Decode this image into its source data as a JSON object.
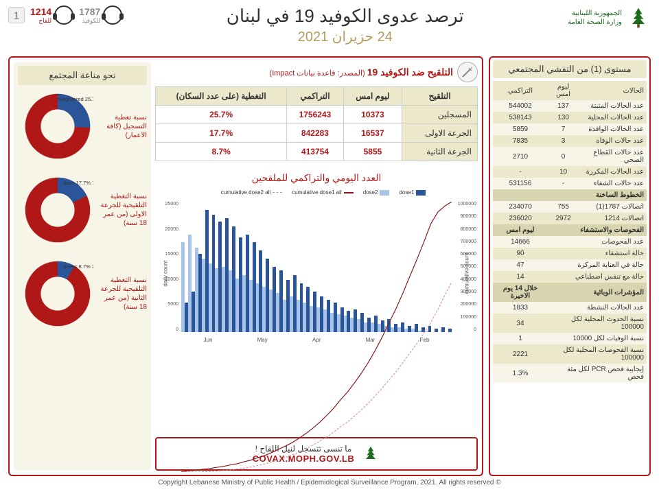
{
  "page_number": "1",
  "header": {
    "logo_line1": "الجمهورية اللبنانية",
    "logo_line2": "وزارة الصحة العامة",
    "title": "ترصد عدوى الكوفيد 19 في لبنان",
    "date": "24 حزيران 2021",
    "hotline_covid_num": "1787",
    "hotline_covid_lbl": "للكوفيد",
    "hotline_vac_num": "1214",
    "hotline_vac_lbl": "للقاح"
  },
  "right": {
    "title": "مستوى (1) من التفشي المجتمعي",
    "cols": {
      "c1": "الحالات",
      "c2": "ليوم امس",
      "c3": "التراكمي"
    },
    "rows": [
      {
        "l": "عدد الحالات المثبتة",
        "y": "137",
        "c": "544002"
      },
      {
        "l": "عدد الحالات المحلية",
        "y": "130",
        "c": "538143"
      },
      {
        "l": "عدد الحالات الوافدة",
        "y": "7",
        "c": "5859"
      },
      {
        "l": "عدد حالات الوفاة",
        "y": "3",
        "c": "7835"
      },
      {
        "l": "عدد حالات القطاع الصحي",
        "y": "0",
        "c": "2710"
      },
      {
        "l": "عدد الحالات المكررة",
        "y": "10",
        "c": "-"
      },
      {
        "l": "عدد حالات الشفاء",
        "y": "-",
        "c": "531156"
      }
    ],
    "hotlines_hdr": "الخطوط الساخنة",
    "hl_rows": [
      {
        "l": "اتصالات 1787(1)",
        "y": "755",
        "c": "234070"
      },
      {
        "l": "اتصالات 1214",
        "y": "2972",
        "c": "236020"
      }
    ],
    "tests_hdr": "الفحوصات والاستشفاء",
    "tests_col": "ليوم امس",
    "test_rows": [
      {
        "l": "عدد الفحوصات",
        "v": "14666"
      },
      {
        "l": "حالة استشفاء",
        "v": "90"
      },
      {
        "l": "حالة في العناية المركزة",
        "v": "47"
      },
      {
        "l": "حالة مع تنفس اصطناعي",
        "v": "14"
      }
    ],
    "epi_hdr": "المؤشرات الوبائية",
    "epi_col": "خلال 14 يوم الاخيرة",
    "epi_rows": [
      {
        "l": "عدد الحالات النشطة",
        "v": "1833"
      },
      {
        "l": "نسبة الحدوث المحلية لكل 100000",
        "v": "34"
      },
      {
        "l": "نسبة الوفيات لكل 10000",
        "v": "1"
      },
      {
        "l": "نسبة الفحوصات المحلية لكل 100000",
        "v": "2221"
      },
      {
        "l": "إيجابية فحص PCR لكل مئة فحص",
        "v": "1.3%"
      }
    ]
  },
  "vac": {
    "title": "التلقيح ضد الكوفيد 19",
    "subtitle": "(المصدر: قاعدة بيانات Impact)",
    "cols": {
      "c1": "التلقيح",
      "c2": "ليوم امس",
      "c3": "التراكمي",
      "c4": "التغطية (على عدد السكان)"
    },
    "rows": [
      {
        "l": "المسجلين",
        "y": "10373",
        "c": "1756243",
        "p": "25.7%"
      },
      {
        "l": "الجرعة الاولى",
        "y": "16537",
        "c": "842283",
        "p": "17.7%"
      },
      {
        "l": "الجرعة الثانية",
        "y": "5855",
        "c": "413754",
        "p": "8.7%"
      }
    ]
  },
  "chart": {
    "title": "العدد اليومي والتراكمي للملقحين",
    "ylabel_left": "daily count",
    "ylabel_right": "cumulative count",
    "yticks_left": [
      "25000",
      "20000",
      "15000",
      "10000",
      "5000",
      "0"
    ],
    "yticks_right": [
      "1000000",
      "900000",
      "800000",
      "700000",
      "600000",
      "500000",
      "400000",
      "300000",
      "200000",
      "100000",
      "0"
    ],
    "months": [
      "Feb",
      "Mar",
      "Apr",
      "May",
      "Jun"
    ],
    "legend": {
      "d1": "dose1",
      "d2": "dose2",
      "c1": "cumulative dose1 all",
      "c2": "cumulative dose2 all"
    },
    "colors": {
      "dose1": "#2a5599",
      "dose2": "#a8c4e8",
      "cum1": "#8b1a1a",
      "cum2": "#d98888"
    },
    "bars_d1": [
      2,
      3,
      2,
      4,
      3,
      5,
      4,
      6,
      5,
      8,
      7,
      10,
      9,
      12,
      14,
      13,
      15,
      18,
      20,
      22,
      25,
      28,
      30,
      35,
      32,
      38,
      40,
      45,
      50,
      55,
      60,
      58,
      65,
      70,
      68,
      72,
      75,
      48,
      25,
      18
    ],
    "bars_d2": [
      0,
      0,
      0,
      1,
      1,
      2,
      2,
      3,
      3,
      4,
      5,
      6,
      6,
      8,
      9,
      10,
      11,
      12,
      14,
      15,
      16,
      18,
      20,
      22,
      20,
      24,
      26,
      28,
      30,
      32,
      35,
      33,
      38,
      40,
      39,
      42,
      45,
      52,
      60,
      55
    ]
  },
  "donuts": {
    "title": "نحو مناعة المجتمع",
    "items": [
      {
        "label": "نسبة تغطية التسجيل (كافة الاعمار)",
        "pct": 25.7,
        "pct_lbl": "Registered 25.7%",
        "color_fill": "#2a5599",
        "color_rest": "#b01818"
      },
      {
        "label": "نسبة التغطية التلقيحية للجرعة الاولى (من عمر 18 سنة)",
        "pct": 17.7,
        "pct_lbl": "1 dose 17.7%",
        "color_fill": "#2a5599",
        "color_rest": "#b01818"
      },
      {
        "label": "نسبة التغطية التلقيحية للجرعة الثانية (من عمر 18 سنة)",
        "pct": 8.7,
        "pct_lbl": "2 doses 8.7%",
        "color_fill": "#2a5599",
        "color_rest": "#b01818"
      }
    ]
  },
  "covax": {
    "text": "ما تنسى تتسجل لنيل اللقاح !",
    "url": "COVAX.MOPH.GOV.LB"
  },
  "footer": "© Copyright Lebanese Ministry of Public Health / Epidemiological Surveillance Program, 2021. All rights reserved"
}
